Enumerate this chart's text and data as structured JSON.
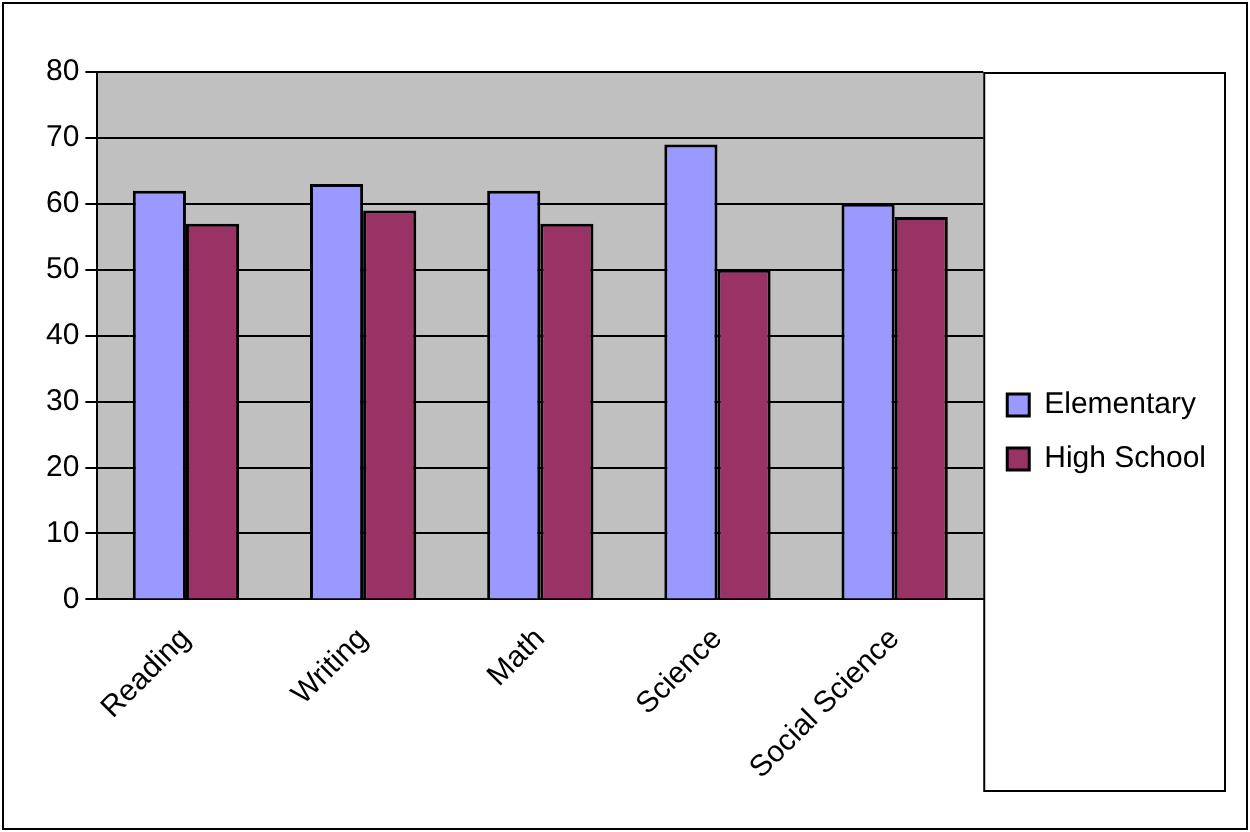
{
  "chart_data": {
    "type": "bar",
    "categories": [
      "Reading",
      "Writing",
      "Math",
      "Science",
      "Social Science"
    ],
    "series": [
      {
        "name": "Elementary",
        "color": "#9999ff",
        "values": [
          62,
          63,
          62,
          69,
          60
        ]
      },
      {
        "name": "High School",
        "color": "#993366",
        "values": [
          57,
          59,
          57,
          50,
          58
        ]
      }
    ],
    "ylim": [
      0,
      80
    ],
    "yticks": [
      0,
      10,
      20,
      30,
      40,
      50,
      60,
      70,
      80
    ],
    "grid": "y",
    "legend": "right"
  }
}
